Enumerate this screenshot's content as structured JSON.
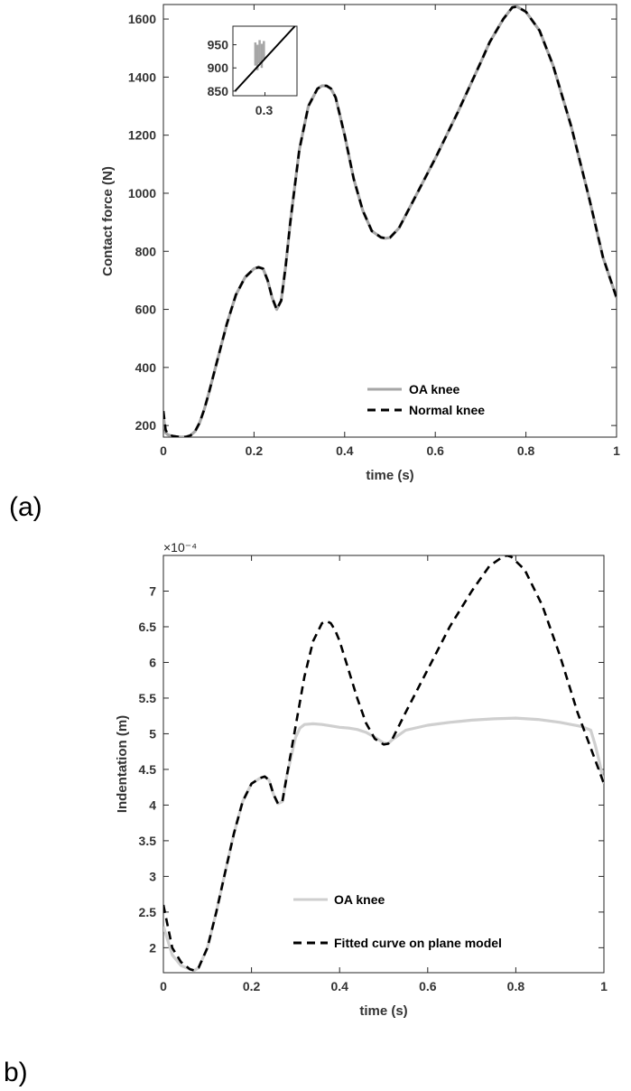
{
  "chart_data": [
    {
      "panel_label": "(a)",
      "type": "line",
      "xlabel": "time (s)",
      "ylabel": "Contact force (N)",
      "xlim": [
        0,
        1
      ],
      "ylim": [
        160,
        1650
      ],
      "xticks": [
        0,
        0.2,
        0.4,
        0.6,
        0.8,
        1
      ],
      "xtick_labels": [
        "0",
        "0.2",
        "0.4",
        "0.6",
        "0.8",
        "1"
      ],
      "yticks": [
        200,
        400,
        600,
        800,
        1000,
        1200,
        1400,
        1600
      ],
      "ytick_labels": [
        "200",
        "400",
        "600",
        "800",
        "1000",
        "1200",
        "1400",
        "1600"
      ],
      "grid": false,
      "legend_position": "bottom-right",
      "series": [
        {
          "name": "OA knee",
          "color": "#a6a6a6",
          "style": "solid",
          "x": [
            0,
            0.005,
            0.01,
            0.02,
            0.03,
            0.04,
            0.05,
            0.06,
            0.07,
            0.08,
            0.09,
            0.1,
            0.12,
            0.14,
            0.16,
            0.18,
            0.2,
            0.21,
            0.22,
            0.23,
            0.24,
            0.25,
            0.26,
            0.27,
            0.28,
            0.3,
            0.32,
            0.34,
            0.35,
            0.36,
            0.37,
            0.38,
            0.4,
            0.42,
            0.44,
            0.46,
            0.48,
            0.49,
            0.5,
            0.52,
            0.55,
            0.6,
            0.65,
            0.7,
            0.72,
            0.75,
            0.77,
            0.78,
            0.8,
            0.83,
            0.86,
            0.9,
            0.94,
            0.97,
            1.0
          ],
          "y": [
            230,
            175,
            168,
            163,
            161,
            160,
            161,
            166,
            180,
            210,
            255,
            310,
            430,
            550,
            650,
            710,
            740,
            745,
            740,
            700,
            640,
            600,
            630,
            750,
            900,
            1150,
            1300,
            1360,
            1370,
            1370,
            1360,
            1330,
            1200,
            1050,
            940,
            870,
            848,
            845,
            847,
            880,
            970,
            1120,
            1280,
            1450,
            1520,
            1600,
            1640,
            1643,
            1625,
            1560,
            1440,
            1230,
            980,
            780,
            640
          ]
        },
        {
          "name": "Normal knee",
          "color": "#000000",
          "style": "dashed",
          "x": [
            0,
            0.005,
            0.01,
            0.02,
            0.03,
            0.04,
            0.05,
            0.06,
            0.07,
            0.08,
            0.09,
            0.1,
            0.12,
            0.14,
            0.16,
            0.18,
            0.2,
            0.21,
            0.22,
            0.23,
            0.24,
            0.25,
            0.26,
            0.27,
            0.28,
            0.3,
            0.32,
            0.34,
            0.35,
            0.36,
            0.37,
            0.38,
            0.4,
            0.42,
            0.44,
            0.46,
            0.48,
            0.49,
            0.5,
            0.52,
            0.55,
            0.6,
            0.65,
            0.7,
            0.72,
            0.75,
            0.77,
            0.78,
            0.8,
            0.83,
            0.86,
            0.9,
            0.94,
            0.97,
            1.0
          ],
          "y": [
            250,
            185,
            170,
            164,
            162,
            160,
            161,
            166,
            180,
            210,
            255,
            310,
            430,
            550,
            650,
            710,
            740,
            745,
            740,
            700,
            640,
            600,
            630,
            750,
            900,
            1150,
            1300,
            1360,
            1370,
            1370,
            1360,
            1330,
            1200,
            1050,
            940,
            870,
            848,
            845,
            847,
            880,
            970,
            1120,
            1280,
            1450,
            1520,
            1600,
            1640,
            1643,
            1625,
            1560,
            1440,
            1230,
            980,
            780,
            640
          ]
        }
      ],
      "inset": {
        "xticks": [
          0.3
        ],
        "xtick_labels": [
          "0.3"
        ],
        "xlim": [
          0.27,
          0.33
        ],
        "ylim": [
          840,
          990
        ],
        "yticks": [
          850,
          900,
          950
        ],
        "ytick_labels": [
          "850",
          "900",
          "950"
        ],
        "series": [
          {
            "name": "Normal knee",
            "x": [
              0.272,
              0.328
            ],
            "y": [
              850,
              990
            ]
          },
          {
            "name": "OA knee",
            "spikes_x": [
              0.291,
              0.293,
              0.295,
              0.297,
              0.299
            ],
            "spikes_ymin": [
              905,
              895,
              910,
              900,
              920
            ],
            "spikes_ymax": [
              955,
              950,
              960,
              952,
              958
            ]
          }
        ]
      }
    },
    {
      "panel_label": "b)",
      "type": "line",
      "xlabel": "time (s)",
      "ylabel": "Indentation (m)",
      "axis_multiplier": "×10⁻⁴",
      "xlim": [
        0,
        1
      ],
      "ylim": [
        1.65,
        7.5
      ],
      "xticks": [
        0,
        0.2,
        0.4,
        0.6,
        0.8,
        1
      ],
      "xtick_labels": [
        "0",
        "0.2",
        "0.4",
        "0.6",
        "0.8",
        "1"
      ],
      "yticks": [
        2,
        2.5,
        3,
        3.5,
        4,
        4.5,
        5,
        5.5,
        6,
        6.5,
        7
      ],
      "ytick_labels": [
        "2",
        "2.5",
        "3",
        "3.5",
        "4",
        "4.5",
        "5",
        "5.5",
        "6",
        "6.5",
        "7"
      ],
      "grid": false,
      "legend_position": "bottom-center",
      "series": [
        {
          "name": "OA knee",
          "color": "#cfcfcf",
          "style": "solid",
          "x": [
            0,
            0.02,
            0.04,
            0.06,
            0.07,
            0.08,
            0.1,
            0.12,
            0.14,
            0.16,
            0.18,
            0.2,
            0.22,
            0.23,
            0.24,
            0.25,
            0.26,
            0.27,
            0.28,
            0.3,
            0.31,
            0.32,
            0.34,
            0.36,
            0.38,
            0.4,
            0.42,
            0.44,
            0.46,
            0.48,
            0.5,
            0.51,
            0.52,
            0.55,
            0.6,
            0.65,
            0.7,
            0.75,
            0.8,
            0.85,
            0.9,
            0.95,
            0.97,
            0.98,
            0.99,
            1.0
          ],
          "y": [
            2.3,
            1.9,
            1.75,
            1.7,
            1.68,
            1.72,
            2.0,
            2.5,
            3.05,
            3.6,
            4.05,
            4.3,
            4.38,
            4.4,
            4.35,
            4.15,
            4.02,
            4.05,
            4.4,
            4.95,
            5.08,
            5.13,
            5.14,
            5.13,
            5.11,
            5.09,
            5.08,
            5.06,
            5.02,
            4.95,
            4.87,
            4.86,
            4.92,
            5.05,
            5.12,
            5.16,
            5.19,
            5.21,
            5.22,
            5.2,
            5.16,
            5.1,
            5.05,
            4.85,
            4.6,
            4.3
          ]
        },
        {
          "name": "Fitted curve on plane model",
          "color": "#000000",
          "style": "dashed",
          "x": [
            0,
            0.02,
            0.04,
            0.06,
            0.07,
            0.08,
            0.1,
            0.12,
            0.14,
            0.16,
            0.18,
            0.2,
            0.22,
            0.23,
            0.24,
            0.25,
            0.26,
            0.27,
            0.28,
            0.3,
            0.32,
            0.34,
            0.36,
            0.37,
            0.38,
            0.39,
            0.4,
            0.42,
            0.44,
            0.46,
            0.48,
            0.5,
            0.51,
            0.52,
            0.55,
            0.6,
            0.65,
            0.7,
            0.74,
            0.77,
            0.78,
            0.79,
            0.82,
            0.86,
            0.9,
            0.94,
            0.97,
            1.0
          ],
          "y": [
            2.6,
            2.0,
            1.8,
            1.7,
            1.68,
            1.72,
            2.0,
            2.5,
            3.05,
            3.6,
            4.05,
            4.3,
            4.38,
            4.4,
            4.35,
            4.15,
            4.02,
            4.05,
            4.4,
            5.1,
            5.8,
            6.3,
            6.55,
            6.58,
            6.55,
            6.45,
            6.3,
            5.9,
            5.5,
            5.15,
            4.93,
            4.85,
            4.86,
            4.93,
            5.3,
            5.9,
            6.5,
            7.0,
            7.35,
            7.48,
            7.5,
            7.48,
            7.3,
            6.8,
            6.1,
            5.3,
            4.8,
            4.3
          ]
        }
      ]
    }
  ]
}
